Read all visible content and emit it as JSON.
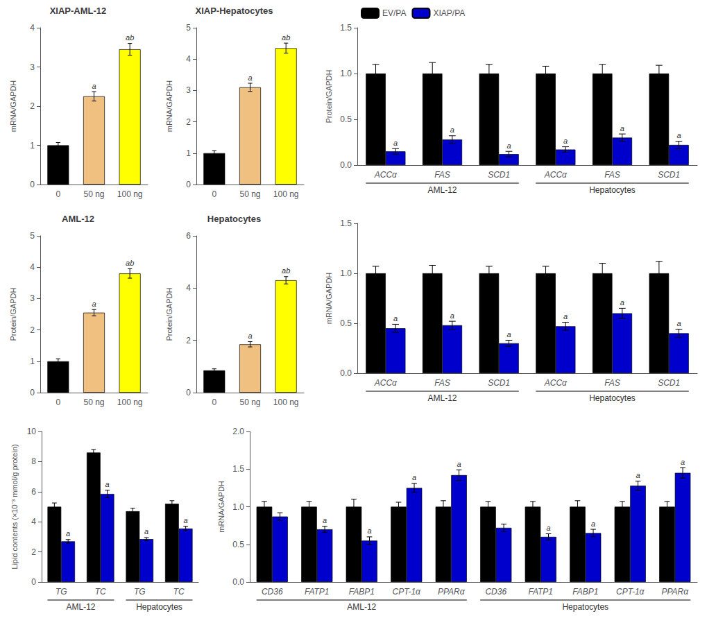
{
  "chart_data": [
    {
      "type": "bar",
      "title": "XIAP-AML-12",
      "categories": [
        "0",
        "50 ng",
        "100 ng"
      ],
      "values": [
        1.0,
        2.25,
        3.45
      ],
      "errors": [
        0.07,
        0.12,
        0.15
      ],
      "colors": [
        "#000000",
        "#F0C080",
        "#FFFF00"
      ],
      "annotations": [
        null,
        "a",
        "ab"
      ],
      "ylabel": "mRNA/GAPDH",
      "ylim": [
        0,
        4
      ],
      "yticks": [
        0,
        1,
        2,
        3,
        4
      ],
      "grid": false
    },
    {
      "type": "bar",
      "title": "XIAP-Hepatocytes",
      "categories": [
        "0",
        "50 ng",
        "100 ng"
      ],
      "values": [
        1.0,
        3.1,
        4.35
      ],
      "errors": [
        0.08,
        0.13,
        0.16
      ],
      "colors": [
        "#000000",
        "#F0C080",
        "#FFFF00"
      ],
      "annotations": [
        null,
        "a",
        "ab"
      ],
      "ylabel": "mRNA/GAPDH",
      "ylim": [
        0,
        5
      ],
      "yticks": [
        0,
        1,
        2,
        3,
        4,
        5
      ],
      "grid": false
    },
    {
      "type": "bar",
      "title": "AML-12",
      "categories": [
        "0",
        "50 ng",
        "100 ng"
      ],
      "values": [
        1.0,
        2.55,
        3.8
      ],
      "errors": [
        0.08,
        0.1,
        0.15
      ],
      "colors": [
        "#000000",
        "#F0C080",
        "#FFFF00"
      ],
      "annotations": [
        null,
        "a",
        "ab"
      ],
      "ylabel": "Protein/GAPDH",
      "ylim": [
        0,
        5
      ],
      "yticks": [
        0,
        1,
        2,
        3,
        4,
        5
      ],
      "grid": false
    },
    {
      "type": "bar",
      "title": "Hepatocytes",
      "categories": [
        "0",
        "50 ng",
        "100 ng"
      ],
      "values": [
        0.85,
        1.85,
        4.3
      ],
      "errors": [
        0.06,
        0.1,
        0.14
      ],
      "colors": [
        "#000000",
        "#F0C080",
        "#FFFF00"
      ],
      "annotations": [
        null,
        "a",
        "ab"
      ],
      "ylabel": "Protein/GAPDH",
      "ylim": [
        0,
        6
      ],
      "yticks": [
        0,
        2,
        4,
        6
      ],
      "grid": false
    },
    {
      "type": "bar",
      "categories": [
        "ACCα",
        "FAS",
        "SCD1",
        "ACCα",
        "FAS",
        "SCD1"
      ],
      "series": [
        {
          "name": "EV/PA",
          "color": "#000000",
          "values": [
            1.0,
            1.0,
            1.0,
            1.0,
            1.0,
            1.0
          ],
          "errors": [
            0.1,
            0.12,
            0.1,
            0.08,
            0.1,
            0.09
          ]
        },
        {
          "name": "XIAP/PA",
          "color": "#0000CC",
          "values": [
            0.15,
            0.28,
            0.12,
            0.17,
            0.3,
            0.22
          ],
          "errors": [
            0.03,
            0.04,
            0.03,
            0.03,
            0.04,
            0.04
          ],
          "annotations": [
            "a",
            "a",
            "a",
            "a",
            "a",
            "a"
          ]
        }
      ],
      "category_groups": [
        {
          "label": "AML-12",
          "count": 3
        },
        {
          "label": "Hepatocytes",
          "count": 3
        }
      ],
      "ylabel": "Protein/GAPDH",
      "ylim": [
        0,
        1.5
      ],
      "yticks": [
        {
          "value": 0.0,
          "label": "0.0"
        },
        {
          "value": 0.5,
          "label": "0.5"
        },
        {
          "value": 1.0,
          "label": "1.0"
        },
        {
          "value": 1.5,
          "label": "1.5"
        }
      ],
      "grid": false,
      "legend": "upper left"
    },
    {
      "type": "bar",
      "categories": [
        "ACCα",
        "FAS",
        "SCD1",
        "ACCα",
        "FAS",
        "SCD1"
      ],
      "series": [
        {
          "name": "EV/PA",
          "color": "#000000",
          "values": [
            1.0,
            1.0,
            1.0,
            1.0,
            1.0,
            1.0
          ],
          "errors": [
            0.07,
            0.08,
            0.07,
            0.07,
            0.1,
            0.12
          ]
        },
        {
          "name": "XIAP/PA",
          "color": "#0000CC",
          "values": [
            0.45,
            0.48,
            0.3,
            0.47,
            0.6,
            0.4
          ],
          "errors": [
            0.04,
            0.04,
            0.03,
            0.04,
            0.05,
            0.04
          ],
          "annotations": [
            "a",
            "a",
            "a",
            "a",
            "a",
            "a"
          ]
        }
      ],
      "category_groups": [
        {
          "label": "AML-12",
          "count": 3
        },
        {
          "label": "Hepatocytes",
          "count": 3
        }
      ],
      "ylabel": "mRNA/GAPDH",
      "ylim": [
        0,
        1.5
      ],
      "yticks": [
        {
          "value": 0.0,
          "label": "0.0"
        },
        {
          "value": 0.5,
          "label": "0.5"
        },
        {
          "value": 1.0,
          "label": "1.0"
        },
        {
          "value": 1.5,
          "label": "1.5"
        }
      ],
      "grid": false
    },
    {
      "type": "bar",
      "categories": [
        "TG",
        "TC",
        "TG",
        "TC"
      ],
      "series": [
        {
          "name": "EV/PA",
          "color": "#000000",
          "values": [
            5.0,
            8.6,
            4.7,
            5.2
          ],
          "errors": [
            0.25,
            0.2,
            0.2,
            0.2
          ]
        },
        {
          "name": "XIAP/PA",
          "color": "#0000CC",
          "values": [
            2.7,
            5.85,
            2.85,
            3.55
          ],
          "errors": [
            0.12,
            0.25,
            0.1,
            0.15
          ],
          "annotations": [
            "a",
            "a",
            "a",
            "a"
          ]
        }
      ],
      "category_groups": [
        {
          "label": "AML-12",
          "count": 2
        },
        {
          "label": "Hepatocytes",
          "count": 2
        }
      ],
      "ylabel": "Lipid contents (×10⁻³ mmol/g protein)",
      "ylim": [
        0,
        10
      ],
      "yticks": [
        0,
        2,
        4,
        6,
        8,
        10
      ],
      "grid": false
    },
    {
      "type": "bar",
      "categories": [
        "CD36",
        "FATP1",
        "FABP1",
        "CPT-1α",
        "PPARα",
        "CD36",
        "FATP1",
        "FABP1",
        "CPT-1α",
        "PPARα"
      ],
      "series": [
        {
          "name": "EV/PA",
          "color": "#000000",
          "values": [
            1.0,
            1.0,
            1.0,
            1.0,
            1.0,
            1.0,
            1.0,
            1.0,
            1.0,
            1.0
          ],
          "errors": [
            0.07,
            0.07,
            0.1,
            0.06,
            0.08,
            0.07,
            0.07,
            0.08,
            0.07,
            0.07
          ]
        },
        {
          "name": "XIAP/PA",
          "color": "#0000CC",
          "values": [
            0.87,
            0.7,
            0.55,
            1.25,
            1.42,
            0.72,
            0.6,
            0.65,
            1.28,
            1.45
          ],
          "errors": [
            0.05,
            0.04,
            0.05,
            0.06,
            0.07,
            0.05,
            0.04,
            0.05,
            0.06,
            0.07
          ],
          "annotations": [
            null,
            "a",
            "a",
            "a",
            "a",
            null,
            "a",
            "a",
            "a",
            "a"
          ]
        }
      ],
      "category_groups": [
        {
          "label": "AML-12",
          "count": 5
        },
        {
          "label": "Hepatocytes",
          "count": 5
        }
      ],
      "ylabel": "mRNA/GAPDH",
      "ylim": [
        0,
        2.0
      ],
      "yticks": [
        {
          "value": 0.0,
          "label": "0.0"
        },
        {
          "value": 0.5,
          "label": "0.5"
        },
        {
          "value": 1.0,
          "label": "1.0"
        },
        {
          "value": 1.5,
          "label": "1.5"
        },
        {
          "value": 2.0,
          "label": "2.0"
        }
      ],
      "grid": false
    }
  ]
}
